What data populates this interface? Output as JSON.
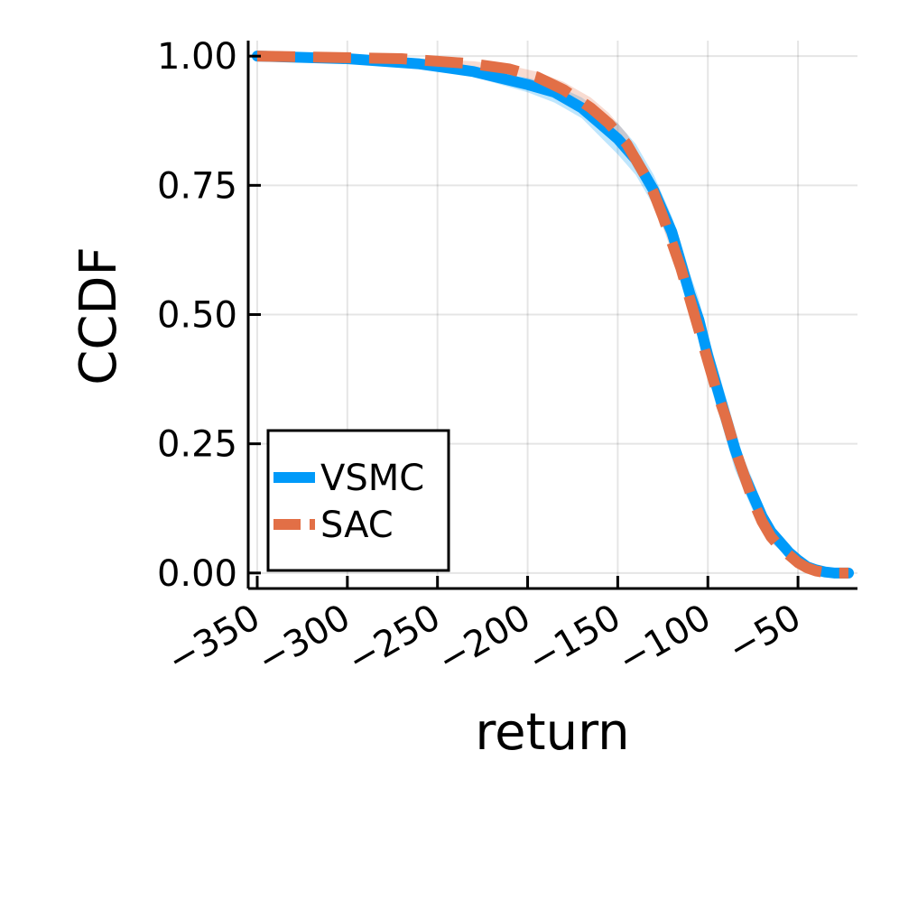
{
  "chart_data": {
    "type": "line",
    "xlabel": "return",
    "ylabel": "CCDF",
    "xlim": [
      -355,
      -17
    ],
    "ylim": [
      -0.03,
      1.03
    ],
    "x_ticks": [
      -350,
      -300,
      -250,
      -200,
      -150,
      -100,
      -50
    ],
    "x_tick_labels": [
      "−350",
      "−300",
      "−250",
      "−200",
      "−150",
      "−100",
      "−50"
    ],
    "y_ticks": [
      0.0,
      0.25,
      0.5,
      0.75,
      1.0
    ],
    "y_tick_labels": [
      "0.00",
      "0.25",
      "0.50",
      "0.75",
      "1.00"
    ],
    "grid": true,
    "legend_position": "bottom-left",
    "series": [
      {
        "name": "VSMC",
        "color": "#009af9",
        "band_color": "#009af9",
        "style": "solid",
        "x": [
          -350,
          -300,
          -260,
          -230,
          -200,
          -185,
          -170,
          -160,
          -150,
          -145,
          -140,
          -135,
          -130,
          -125,
          -120,
          -115,
          -110,
          -105,
          -100,
          -95,
          -90,
          -85,
          -80,
          -75,
          -70,
          -65,
          -60,
          -55,
          -50,
          -45,
          -40,
          -35,
          -30,
          -22
        ],
        "y": [
          1.0,
          0.995,
          0.985,
          0.97,
          0.945,
          0.93,
          0.9,
          0.87,
          0.84,
          0.82,
          0.8,
          0.77,
          0.74,
          0.7,
          0.66,
          0.6,
          0.54,
          0.49,
          0.42,
          0.36,
          0.3,
          0.24,
          0.19,
          0.15,
          0.11,
          0.08,
          0.06,
          0.04,
          0.025,
          0.012,
          0.006,
          0.002,
          0.0,
          0.0
        ],
        "upper": [
          1.0,
          0.997,
          0.99,
          0.978,
          0.958,
          0.945,
          0.92,
          0.895,
          0.87,
          0.85,
          0.83,
          0.8,
          0.77,
          0.73,
          0.69,
          0.64,
          0.58,
          0.53,
          0.46,
          0.4,
          0.34,
          0.28,
          0.22,
          0.18,
          0.13,
          0.1,
          0.07,
          0.05,
          0.03,
          0.016,
          0.008,
          0.003,
          0.0,
          0.0
        ],
        "lower": [
          1.0,
          0.992,
          0.978,
          0.96,
          0.93,
          0.91,
          0.88,
          0.845,
          0.81,
          0.79,
          0.77,
          0.74,
          0.71,
          0.67,
          0.63,
          0.56,
          0.5,
          0.45,
          0.38,
          0.32,
          0.26,
          0.2,
          0.16,
          0.12,
          0.09,
          0.06,
          0.045,
          0.03,
          0.018,
          0.008,
          0.003,
          0.001,
          0.0,
          0.0
        ]
      },
      {
        "name": "SAC",
        "color": "#e26f46",
        "band_color": "#e26f46",
        "style": "dashed",
        "x": [
          -350,
          -300,
          -270,
          -250,
          -230,
          -210,
          -195,
          -180,
          -165,
          -155,
          -150,
          -145,
          -140,
          -135,
          -130,
          -125,
          -120,
          -115,
          -110,
          -105,
          -100,
          -95,
          -90,
          -85,
          -80,
          -75,
          -70,
          -65,
          -60,
          -55,
          -50,
          -45,
          -40,
          -35,
          -30,
          -22
        ],
        "y": [
          1.0,
          0.997,
          0.995,
          0.99,
          0.985,
          0.975,
          0.96,
          0.935,
          0.9,
          0.87,
          0.85,
          0.83,
          0.8,
          0.77,
          0.735,
          0.69,
          0.64,
          0.59,
          0.53,
          0.47,
          0.41,
          0.35,
          0.3,
          0.24,
          0.19,
          0.14,
          0.1,
          0.07,
          0.05,
          0.035,
          0.02,
          0.01,
          0.004,
          0.001,
          0.0,
          0.0
        ],
        "upper": [
          1.0,
          0.998,
          0.997,
          0.994,
          0.99,
          0.982,
          0.97,
          0.95,
          0.92,
          0.89,
          0.87,
          0.85,
          0.82,
          0.79,
          0.755,
          0.71,
          0.66,
          0.61,
          0.55,
          0.49,
          0.43,
          0.37,
          0.32,
          0.26,
          0.21,
          0.155,
          0.11,
          0.08,
          0.056,
          0.04,
          0.024,
          0.012,
          0.005,
          0.0015,
          0.0,
          0.0
        ],
        "lower": [
          1.0,
          0.995,
          0.992,
          0.986,
          0.98,
          0.968,
          0.95,
          0.92,
          0.88,
          0.85,
          0.83,
          0.81,
          0.78,
          0.75,
          0.715,
          0.67,
          0.62,
          0.57,
          0.51,
          0.45,
          0.39,
          0.33,
          0.28,
          0.22,
          0.17,
          0.125,
          0.09,
          0.06,
          0.044,
          0.03,
          0.016,
          0.008,
          0.003,
          0.0005,
          0.0,
          0.0
        ]
      }
    ]
  }
}
